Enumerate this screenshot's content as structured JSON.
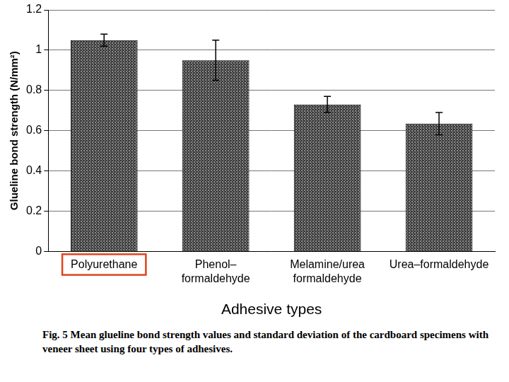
{
  "chart_data": {
    "type": "bar",
    "x_label": "Adhesive types",
    "y_label": "Glueline bond strength (N/mm²)",
    "categories": [
      "Polyurethane",
      [
        "Phenol–",
        "formaldehyde"
      ],
      [
        "Melamine/urea",
        "formaldehyde"
      ],
      "Urea–formaldehyde"
    ],
    "values": [
      1.05,
      0.95,
      0.73,
      0.635
    ],
    "errors": [
      0.03,
      0.1,
      0.04,
      0.055
    ],
    "color": "#3a3a3a",
    "ylim": [
      0,
      1.2
    ],
    "yticks": [
      0,
      0.2,
      0.4,
      0.6,
      0.8,
      1,
      1.2
    ],
    "grid": true,
    "caption": "Fig. 5  Mean glueline bond strength values and standard deviation of the cardboard specimens with veneer sheet using four types of adhesives."
  }
}
